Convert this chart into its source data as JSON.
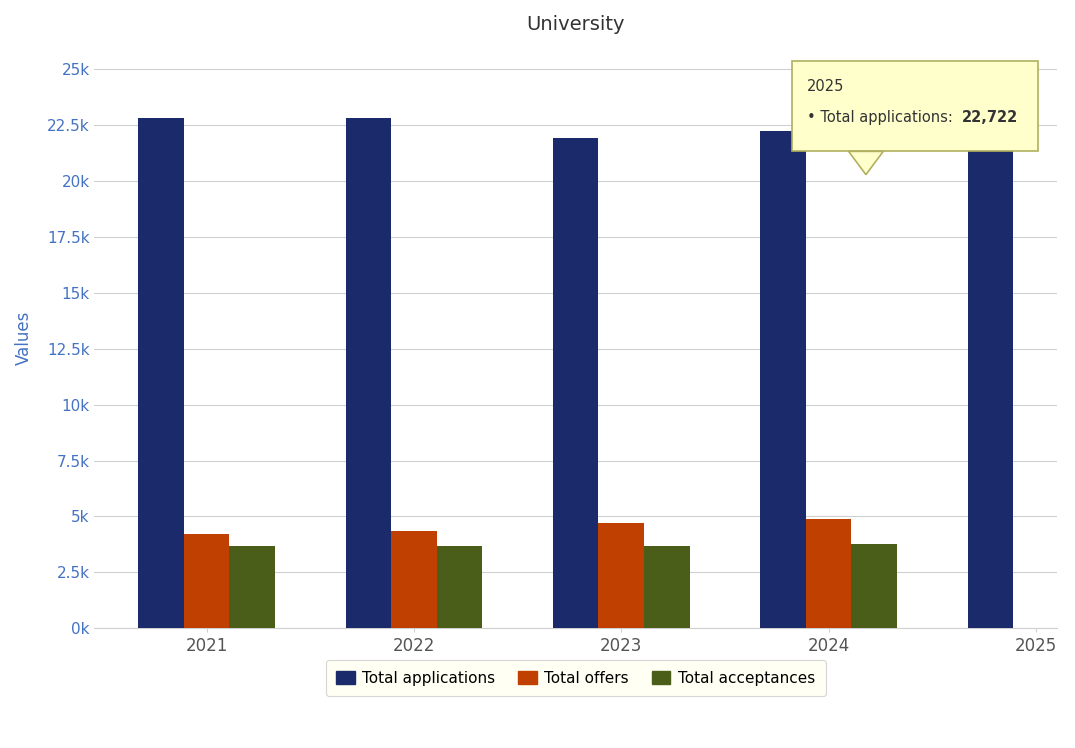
{
  "title": "University",
  "ylabel": "Values",
  "years": [
    "2021",
    "2022",
    "2023",
    "2024",
    "2025"
  ],
  "total_applications": [
    22800,
    22800,
    21900,
    22250,
    22722
  ],
  "total_offers": [
    4200,
    4350,
    4700,
    4900,
    0
  ],
  "total_acceptances": [
    3700,
    3700,
    3700,
    3750,
    0
  ],
  "bar_colors": {
    "applications": "#1b2a6b",
    "offers": "#bf4000",
    "acceptances": "#4a5e1a"
  },
  "legend_labels": [
    "Total applications",
    "Total offers",
    "Total acceptances"
  ],
  "legend_bg": "#fffff0",
  "tooltip_year": "2025",
  "tooltip_label": "Total applications: ",
  "tooltip_value": "22,722",
  "ylim": [
    0,
    26000
  ],
  "yticks": [
    0,
    2500,
    5000,
    7500,
    10000,
    12500,
    15000,
    17500,
    20000,
    22500,
    25000
  ],
  "ytick_labels": [
    "0k",
    "2.5k",
    "5k",
    "7.5k",
    "10k",
    "12.5k",
    "15k",
    "17.5k",
    "20k",
    "22.5k",
    "25k"
  ],
  "background_color": "#ffffff",
  "bar_width": 0.22,
  "grid_color": "#d0d0d0",
  "axis_color": "#4472c4",
  "title_color": "#333333",
  "tick_color": "#555555"
}
